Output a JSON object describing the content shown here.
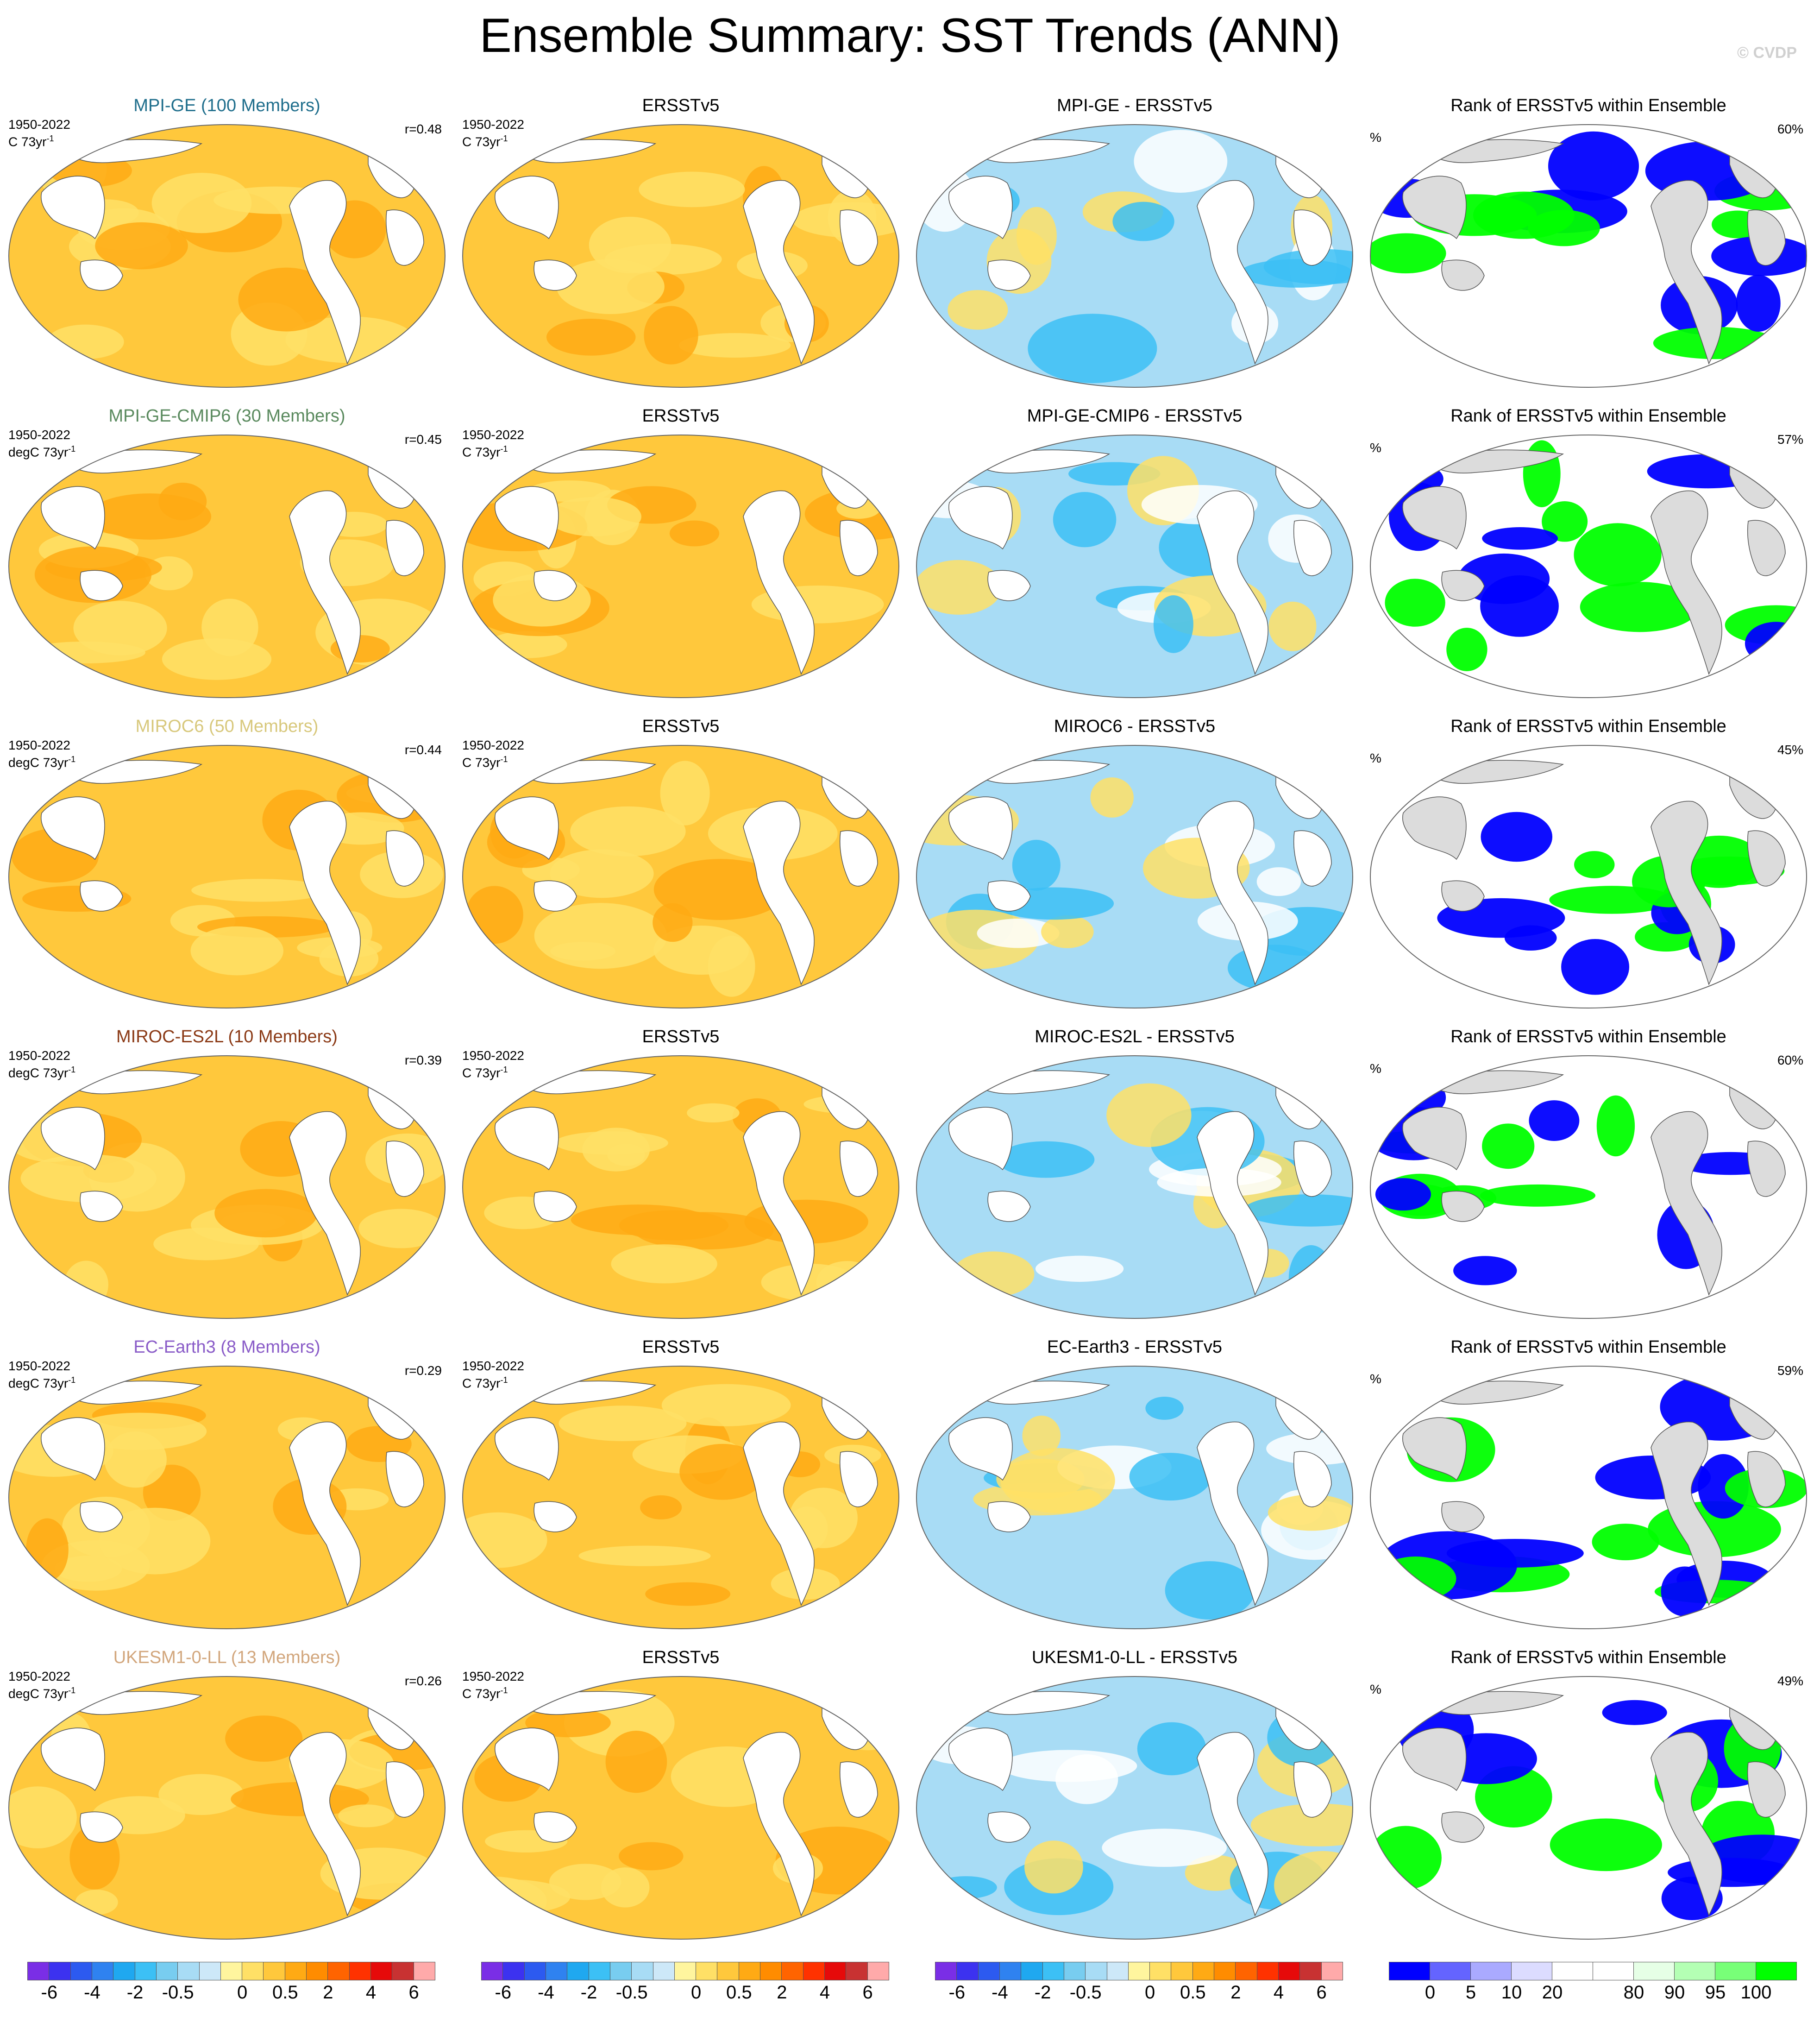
{
  "title": "Ensemble Summary: SST Trends (ANN)",
  "credit": "© CVDP",
  "obs_title": "ERSSTv5",
  "rank_title": "Rank of ERSSTv5 within Ensemble",
  "period": "1950-2022",
  "rank_unit": "%",
  "rows": [
    {
      "model_title": "MPI-GE (100 Members)",
      "title_color": "#1f6e8c",
      "diff_title": "MPI-GE - ERSSTv5",
      "units_model": "C 73yr",
      "units_obs": "C 73yr",
      "r": "r=0.48",
      "pct": "60%",
      "sup": "-1"
    },
    {
      "model_title": "MPI-GE-CMIP6 (30 Members)",
      "title_color": "#5a8a5e",
      "diff_title": "MPI-GE-CMIP6 - ERSSTv5",
      "units_model": "degC 73yr",
      "units_obs": "C 73yr",
      "r": "r=0.45",
      "pct": "57%",
      "sup": "-1"
    },
    {
      "model_title": "MIROC6 (50 Members)",
      "title_color": "#d8c87c",
      "diff_title": "MIROC6 - ERSSTv5",
      "units_model": "degC 73yr",
      "units_obs": "C 73yr",
      "r": "r=0.44",
      "pct": "45%",
      "sup": "-1"
    },
    {
      "model_title": "MIROC-ES2L (10 Members)",
      "title_color": "#8b3a16",
      "diff_title": "MIROC-ES2L - ERSSTv5",
      "units_model": "degC 73yr",
      "units_obs": "C 73yr",
      "r": "r=0.39",
      "pct": "60%",
      "sup": "-1"
    },
    {
      "model_title": "EC-Earth3 (8 Members)",
      "title_color": "#8a5cc8",
      "diff_title": "EC-Earth3 - ERSSTv5",
      "units_model": "degC 73yr",
      "units_obs": "C 73yr",
      "r": "r=0.29",
      "pct": "59%",
      "sup": "-1"
    },
    {
      "model_title": "UKESM1-0-LL (13 Members)",
      "title_color": "#d2a67c",
      "diff_title": "UKESM1-0-LL - ERSSTv5",
      "units_model": "degC 73yr",
      "units_obs": "C 73yr",
      "r": "r=0.26",
      "pct": "49%",
      "sup": "-1"
    }
  ],
  "colorbar_trend": {
    "colors": [
      "#7a2ee6",
      "#3c32f0",
      "#2c5af0",
      "#2f82f0",
      "#1fa8f0",
      "#3cc0f5",
      "#78cdf0",
      "#a8dcf5",
      "#cde8f8",
      "#fff59e",
      "#ffe066",
      "#ffc83c",
      "#ffaa14",
      "#ff8c00",
      "#ff6400",
      "#ff3200",
      "#e60a0a",
      "#c83232",
      "#ffaaaa"
    ],
    "labels": [
      "-6",
      "-4",
      "-2",
      "-0.5",
      "0",
      "0.5",
      "2",
      "4",
      "6"
    ]
  },
  "colorbar_rank": {
    "colors": [
      "#0000ff",
      "#6464ff",
      "#aaaaff",
      "#dcdcff",
      "#ffffff",
      "#ffffff",
      "#e6ffe6",
      "#b4ffb4",
      "#78ff78",
      "#00ff00"
    ],
    "labels": [
      "0",
      "5",
      "10",
      "20",
      "80",
      "90",
      "95",
      "100"
    ]
  },
  "map_colors": {
    "land": "#ffffff",
    "land_rank": "#dcdcdc",
    "ocean_warm": "#ffc83c",
    "ocean_warmer": "#ffaa14",
    "cool": "#a8dcf5",
    "cooler": "#3cc0f5",
    "rank_low": "#0000ff",
    "rank_high": "#00ff00"
  }
}
